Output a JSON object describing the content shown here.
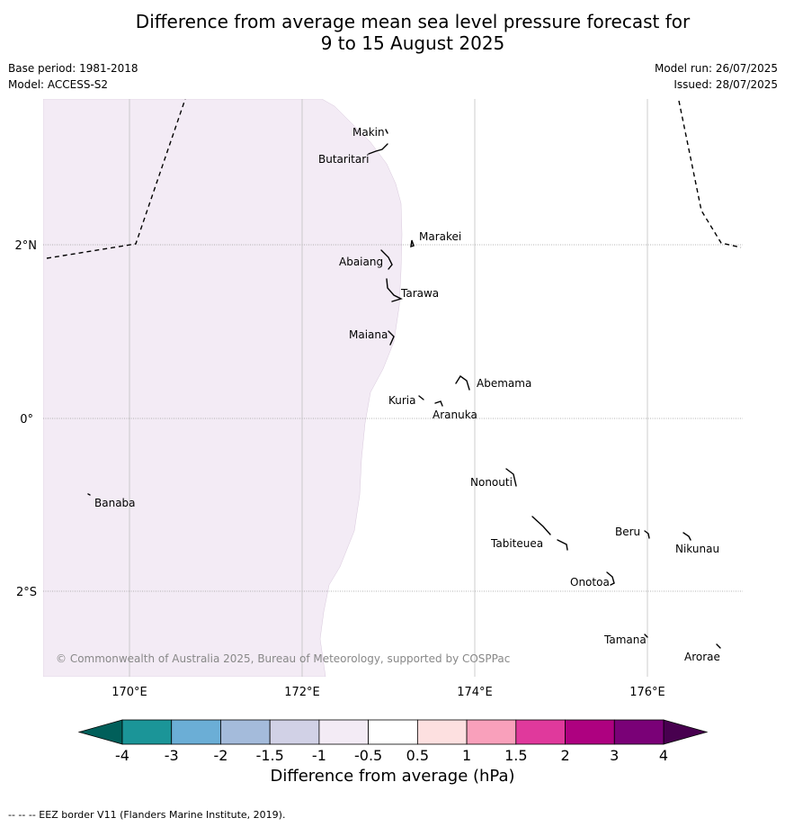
{
  "title_line1": "Difference from average mean sea level pressure forecast for",
  "title_line2": "9 to 15 August 2025",
  "base_period": "Base period: 1981-2018",
  "model": "Model: ACCESS-S2",
  "model_run": "Model run: 26/07/2025",
  "issued": "Issued: 28/07/2025",
  "copyright": "© Commonwealth of Australia 2025, Bureau of Meteorology, supported by COSPPac",
  "map": {
    "lon_ticks": [
      "170°E",
      "172°E",
      "174°E",
      "176°E"
    ],
    "lat_ticks": [
      "2°N",
      "0°",
      "2°S"
    ],
    "places": [
      {
        "name": "Makin"
      },
      {
        "name": "Butaritari"
      },
      {
        "name": "Marakei"
      },
      {
        "name": "Abaiang"
      },
      {
        "name": "Tarawa"
      },
      {
        "name": "Maiana"
      },
      {
        "name": "Abemama"
      },
      {
        "name": "Kuria"
      },
      {
        "name": "Aranuka"
      },
      {
        "name": "Nonouti"
      },
      {
        "name": "Banaba"
      },
      {
        "name": "Beru"
      },
      {
        "name": "Tabiteuea"
      },
      {
        "name": "Nikunau"
      },
      {
        "name": "Onotoa"
      },
      {
        "name": "Tamana"
      },
      {
        "name": "Arorae"
      }
    ],
    "anomaly_fill_color": "#f3ebf5"
  },
  "colorbar": {
    "label": "Difference from average (hPa)",
    "ticks": [
      "-4",
      "-3",
      "-2",
      "-1.5",
      "-1",
      "-0.5",
      "0.5",
      "1",
      "1.5",
      "2",
      "3",
      "4"
    ],
    "colors": [
      "#1b9598",
      "#6baed6",
      "#a4bbdb",
      "#d1d1e6",
      "#f3ebf5",
      "#ffffff",
      "#fde0e0",
      "#f9a0bb",
      "#e0399c",
      "#ae0180",
      "#7a0177"
    ],
    "low_extend_color": "#015f5a",
    "high_extend_color": "#48004f"
  },
  "footnote": "-- -- -- EEZ border V11 (Flanders Marine Institute, 2019)."
}
